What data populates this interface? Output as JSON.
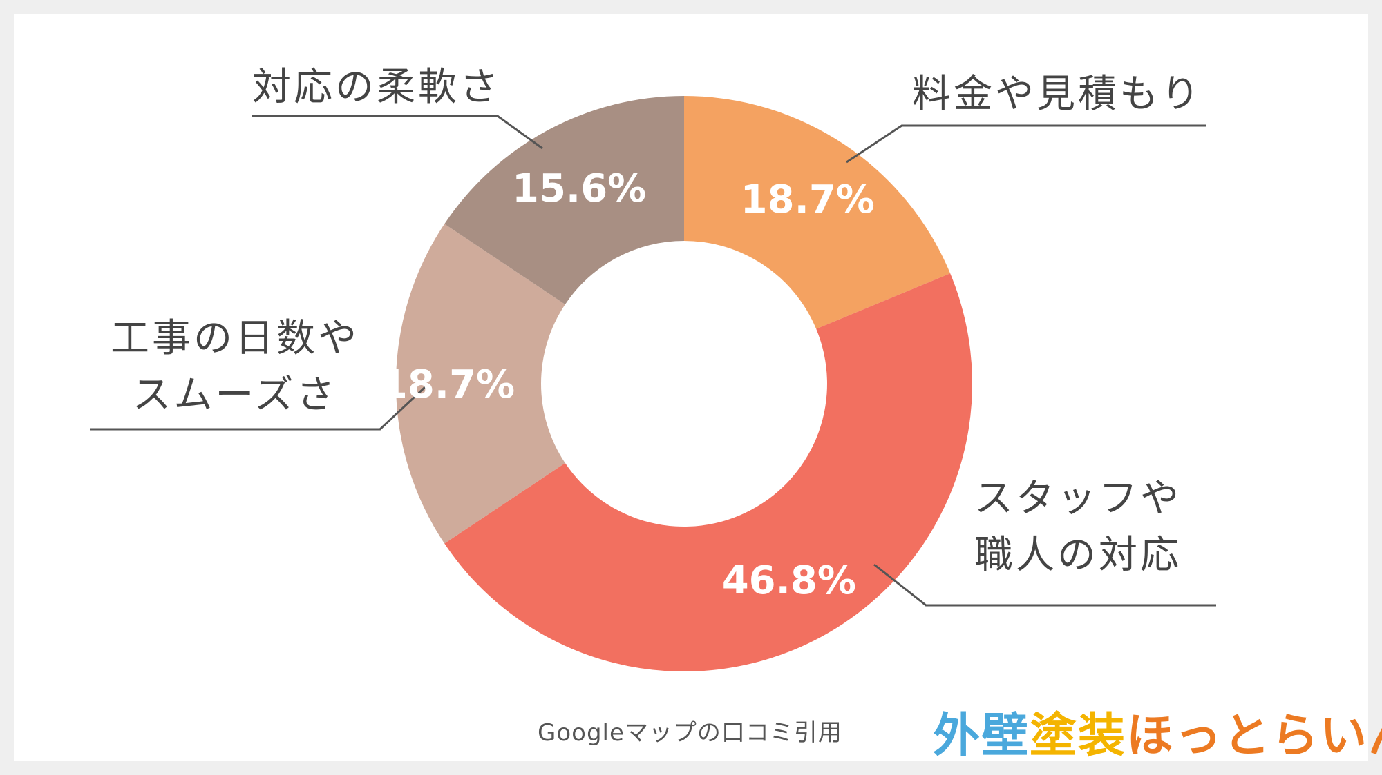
{
  "chart_data": {
    "type": "pie",
    "donut": true,
    "slices": [
      {
        "label": "料金や見積もり",
        "value": 18.7,
        "value_label": "18.7%",
        "color": "#f4a261"
      },
      {
        "label": "スタッフや\n職人の対応",
        "value": 46.8,
        "value_label": "46.8%",
        "color": "#f27060"
      },
      {
        "label": "工事の日数や\nスムーズさ",
        "value": 18.7,
        "value_label": "18.7%",
        "color": "#cfab9b"
      },
      {
        "label": "対応の柔軟さ",
        "value": 15.6,
        "value_label": "15.6%",
        "color": "#a88f83"
      }
    ],
    "start_angle": "12 o'clock",
    "direction": "clockwise"
  },
  "source_note": "Googleマップの口コミ引用",
  "logo": {
    "text": "外壁塗装ほっとらいん",
    "parts": [
      {
        "text": "外壁",
        "color": "#4aa8dc"
      },
      {
        "text": "塗装",
        "color": "#f4b400"
      },
      {
        "text": "ほっとらいん",
        "color": "#ec7a22"
      }
    ]
  }
}
